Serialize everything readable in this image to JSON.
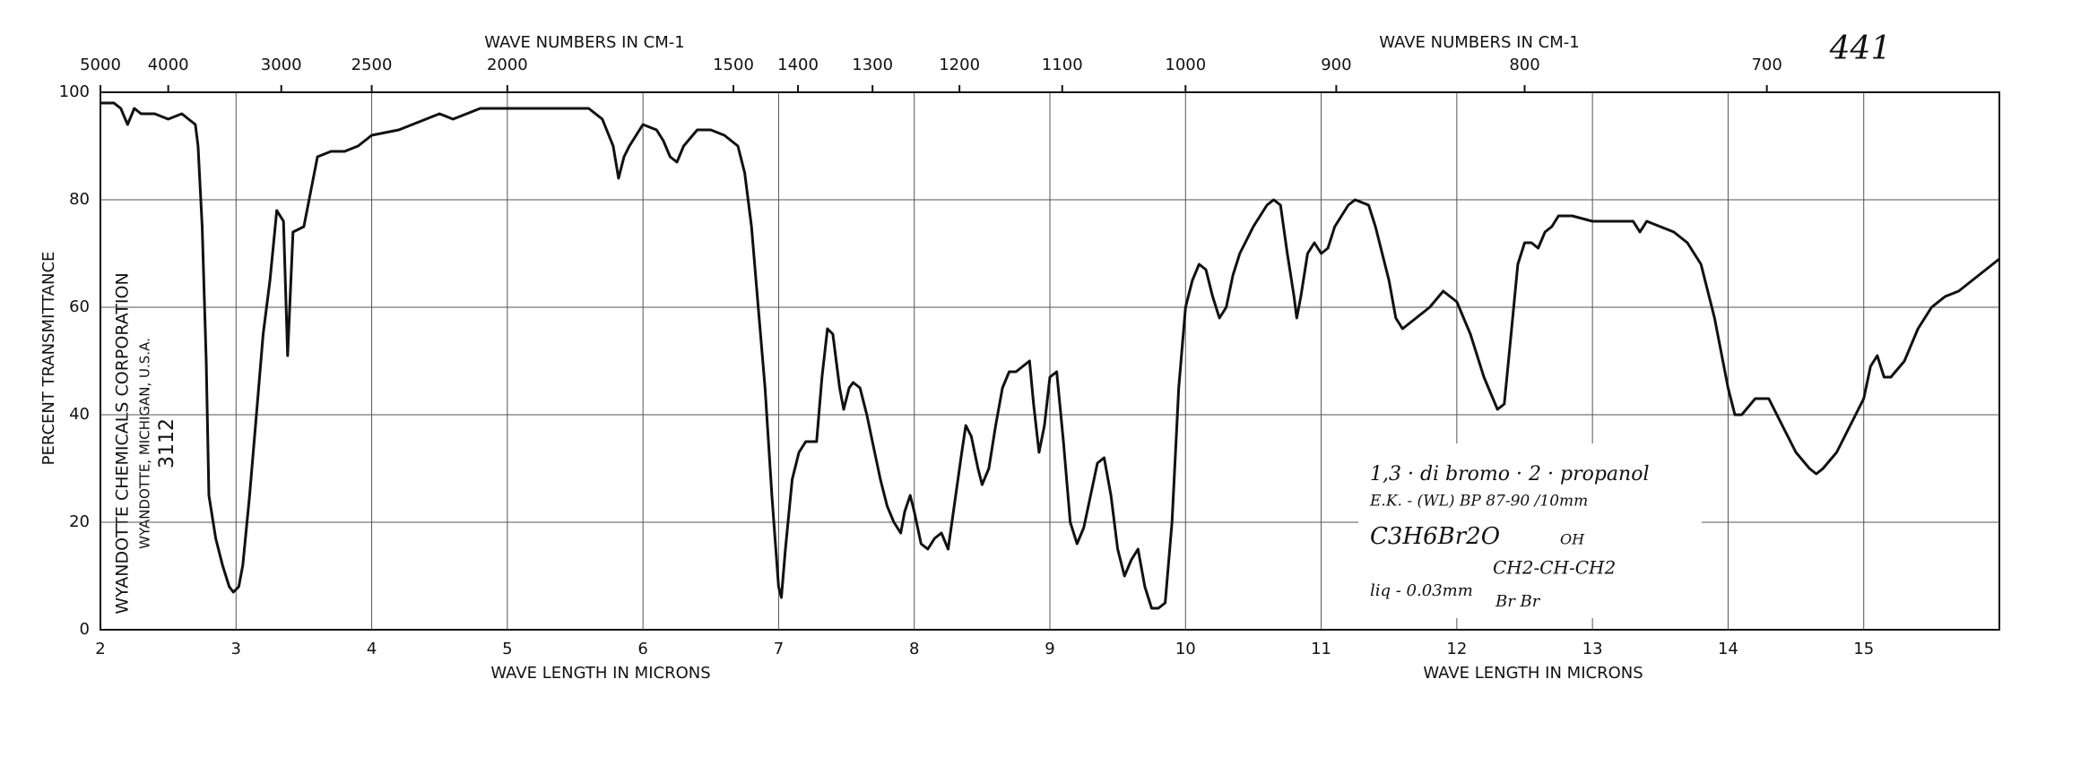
{
  "chart_data": {
    "type": "line",
    "title_top_left": "WAVE NUMBERS IN CM-1",
    "title_top_right": "WAVE NUMBERS IN CM-1",
    "x_label_left": "WAVE LENGTH IN MICRONS",
    "x_label_right": "WAVE LENGTH IN MICRONS",
    "y_label": "PERCENT TRANSMITTANCE",
    "page_number": "441",
    "maker": [
      "WYANDOTTE CHEMICALS CORPORATION",
      "WYANDOTTE, MICHIGAN, U.S.A.",
      "3112"
    ],
    "sample_note": {
      "name": "1,3 · di bromo · 2 · propanol",
      "source": "E.K. - (WL)  BP 87-90 /10mm",
      "formula": "C3H6Br2O",
      "oh": "OH",
      "structure": "CH2-CH-CH2",
      "br": "Br          Br",
      "thickness": "liq - 0.03mm"
    },
    "xlim": [
      2,
      16
    ],
    "xticks": [
      2,
      3,
      4,
      5,
      6,
      7,
      8,
      9,
      10,
      11,
      12,
      13,
      14,
      15
    ],
    "ylim": [
      0,
      100
    ],
    "yticks": [
      0,
      20,
      40,
      60,
      80,
      100
    ],
    "x2ticks": [
      5000,
      4000,
      3000,
      2500,
      2000,
      1500,
      1400,
      1300,
      1200,
      1100,
      1000,
      900,
      800,
      700
    ],
    "grid": true,
    "series": [
      {
        "color": "#111111",
        "x": [
          2.0,
          2.1,
          2.15,
          2.2,
          2.25,
          2.3,
          2.4,
          2.5,
          2.6,
          2.65,
          2.7,
          2.72,
          2.75,
          2.78,
          2.8,
          2.85,
          2.9,
          2.95,
          2.98,
          3.02,
          3.05,
          3.1,
          3.15,
          3.2,
          3.25,
          3.3,
          3.35,
          3.38,
          3.42,
          3.5,
          3.6,
          3.7,
          3.8,
          3.9,
          4.0,
          4.2,
          4.4,
          4.5,
          4.6,
          4.7,
          4.8,
          5.0,
          5.5,
          5.6,
          5.7,
          5.78,
          5.82,
          5.86,
          5.9,
          6.0,
          6.1,
          6.15,
          6.2,
          6.25,
          6.3,
          6.4,
          6.5,
          6.6,
          6.7,
          6.75,
          6.8,
          6.85,
          6.9,
          6.95,
          7.0,
          7.02,
          7.05,
          7.1,
          7.15,
          7.2,
          7.28,
          7.32,
          7.36,
          7.4,
          7.45,
          7.48,
          7.52,
          7.55,
          7.6,
          7.65,
          7.7,
          7.75,
          7.8,
          7.85,
          7.9,
          7.93,
          7.97,
          8.0,
          8.05,
          8.1,
          8.15,
          8.2,
          8.25,
          8.3,
          8.35,
          8.38,
          8.42,
          8.47,
          8.5,
          8.55,
          8.6,
          8.65,
          8.7,
          8.75,
          8.8,
          8.85,
          8.88,
          8.92,
          8.96,
          9.0,
          9.05,
          9.1,
          9.15,
          9.2,
          9.25,
          9.3,
          9.35,
          9.4,
          9.45,
          9.5,
          9.55,
          9.6,
          9.65,
          9.7,
          9.75,
          9.8,
          9.85,
          9.9,
          9.95,
          10.0,
          10.05,
          10.1,
          10.15,
          10.2,
          10.25,
          10.3,
          10.35,
          10.4,
          10.5,
          10.6,
          10.65,
          10.7,
          10.75,
          10.8,
          10.82,
          10.85,
          10.9,
          10.95,
          11.0,
          11.05,
          11.1,
          11.2,
          11.25,
          11.35,
          11.4,
          11.5,
          11.55,
          11.6,
          11.7,
          11.8,
          11.9,
          12.0,
          12.1,
          12.2,
          12.3,
          12.35,
          12.4,
          12.45,
          12.5,
          12.55,
          12.6,
          12.65,
          12.7,
          12.75,
          12.85,
          13.0,
          13.2,
          13.3,
          13.35,
          13.4,
          13.5,
          13.6,
          13.7,
          13.8,
          13.9,
          14.0,
          14.05,
          14.1,
          14.2,
          14.3,
          14.4,
          14.5,
          14.6,
          14.65,
          14.7,
          14.8,
          14.9,
          15.0,
          15.05,
          15.1,
          15.15,
          15.2,
          15.3,
          15.4,
          15.5,
          15.6,
          15.7,
          15.8,
          15.9,
          16.0
        ],
        "values": [
          98,
          98,
          97,
          94,
          97,
          96,
          96,
          95,
          96,
          95,
          94,
          90,
          75,
          50,
          25,
          17,
          12,
          8,
          7,
          8,
          12,
          25,
          40,
          55,
          65,
          78,
          76,
          51,
          74,
          75,
          88,
          89,
          89,
          90,
          92,
          93,
          95,
          96,
          95,
          96,
          97,
          97,
          97,
          97,
          95,
          90,
          84,
          88,
          90,
          94,
          93,
          91,
          88,
          87,
          90,
          93,
          93,
          92,
          90,
          85,
          75,
          60,
          45,
          25,
          8,
          6,
          15,
          28,
          33,
          35,
          35,
          47,
          56,
          55,
          45,
          41,
          45,
          46,
          45,
          40,
          34,
          28,
          23,
          20,
          18,
          22,
          25,
          22,
          16,
          15,
          17,
          18,
          15,
          24,
          33,
          38,
          36,
          30,
          27,
          30,
          38,
          45,
          48,
          48,
          49,
          50,
          42,
          33,
          38,
          47,
          48,
          35,
          20,
          16,
          19,
          25,
          31,
          32,
          25,
          15,
          10,
          13,
          15,
          8,
          4,
          4,
          5,
          20,
          45,
          60,
          65,
          68,
          67,
          62,
          58,
          60,
          66,
          70,
          75,
          79,
          80,
          79,
          70,
          62,
          58,
          62,
          70,
          72,
          70,
          71,
          75,
          79,
          80,
          79,
          75,
          65,
          58,
          56,
          58,
          60,
          63,
          61,
          55,
          47,
          41,
          42,
          55,
          68,
          72,
          72,
          71,
          74,
          75,
          77,
          77,
          76,
          76,
          76,
          74,
          76,
          75,
          74,
          72,
          68,
          58,
          45,
          40,
          40,
          43,
          43,
          38,
          33,
          30,
          29,
          30,
          33,
          38,
          43,
          49,
          51,
          47,
          47,
          50,
          56,
          60,
          62,
          63,
          65,
          67,
          69
        ]
      }
    ]
  }
}
